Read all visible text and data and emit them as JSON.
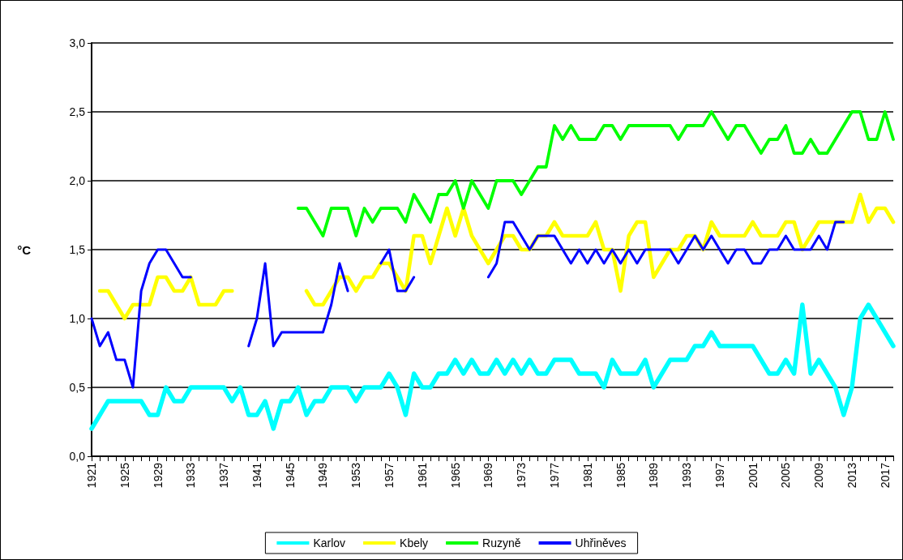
{
  "chart_data": {
    "type": "line",
    "ylabel": "°C",
    "x": [
      1921,
      1922,
      1923,
      1924,
      1925,
      1926,
      1927,
      1928,
      1929,
      1930,
      1931,
      1932,
      1933,
      1934,
      1935,
      1936,
      1937,
      1938,
      1939,
      1940,
      1941,
      1942,
      1943,
      1944,
      1945,
      1946,
      1947,
      1948,
      1949,
      1950,
      1951,
      1952,
      1953,
      1954,
      1955,
      1956,
      1957,
      1958,
      1959,
      1960,
      1961,
      1962,
      1963,
      1964,
      1965,
      1966,
      1967,
      1968,
      1969,
      1970,
      1971,
      1972,
      1973,
      1974,
      1975,
      1976,
      1977,
      1978,
      1979,
      1980,
      1981,
      1982,
      1983,
      1984,
      1985,
      1986,
      1987,
      1988,
      1989,
      1990,
      1991,
      1992,
      1993,
      1994,
      1995,
      1996,
      1997,
      1998,
      1999,
      2000,
      2001,
      2002,
      2003,
      2004,
      2005,
      2006,
      2007,
      2008,
      2009,
      2010,
      2011,
      2012,
      2013,
      2014,
      2015,
      2016,
      2017,
      2018
    ],
    "xlim": [
      1921,
      2018
    ],
    "xticks": [
      1921,
      1925,
      1929,
      1933,
      1937,
      1941,
      1945,
      1949,
      1953,
      1957,
      1961,
      1965,
      1969,
      1973,
      1977,
      1981,
      1985,
      1989,
      1993,
      1997,
      2001,
      2005,
      2009,
      2013,
      2017
    ],
    "ylim": [
      0,
      3
    ],
    "yticks": [
      {
        "value": 0,
        "label": "0,0"
      },
      {
        "value": 0.5,
        "label": "0,5"
      },
      {
        "value": 1,
        "label": "1,0"
      },
      {
        "value": 1.5,
        "label": "1,5"
      },
      {
        "value": 2,
        "label": "2,0"
      },
      {
        "value": 2.5,
        "label": "2,5"
      },
      {
        "value": 3,
        "label": "3,0"
      }
    ],
    "grid": "y",
    "legend": "bottom",
    "marker": "none",
    "line_style": "solid",
    "series": [
      {
        "name": "Karlov",
        "color": "#00ffff",
        "values": [
          0.2,
          0.3,
          0.4,
          0.4,
          0.4,
          0.4,
          0.4,
          0.3,
          0.3,
          0.5,
          0.4,
          0.4,
          0.5,
          0.5,
          0.5,
          0.5,
          0.5,
          0.4,
          0.5,
          0.3,
          0.3,
          0.4,
          0.2,
          0.4,
          0.4,
          0.5,
          0.3,
          0.4,
          0.4,
          0.5,
          0.5,
          0.5,
          0.4,
          0.5,
          0.5,
          0.5,
          0.6,
          0.5,
          0.3,
          0.6,
          0.5,
          0.5,
          0.6,
          0.6,
          0.7,
          0.6,
          0.7,
          0.6,
          0.6,
          0.7,
          0.6,
          0.7,
          0.6,
          0.7,
          0.6,
          0.6,
          0.7,
          0.7,
          0.7,
          0.6,
          0.6,
          0.6,
          0.5,
          0.7,
          0.6,
          0.6,
          0.6,
          0.7,
          0.5,
          0.6,
          0.7,
          0.7,
          0.7,
          0.8,
          0.8,
          0.9,
          0.8,
          0.8,
          0.8,
          0.8,
          0.8,
          0.7,
          0.6,
          0.6,
          0.7,
          0.6,
          1.1,
          0.6,
          0.7,
          0.6,
          0.5,
          0.3,
          0.5,
          1.0,
          1.1,
          1.0,
          0.9,
          0.8
        ]
      },
      {
        "name": "Kbely",
        "color": "#ffff00",
        "values": [
          null,
          1.2,
          1.2,
          1.1,
          1.0,
          1.1,
          1.1,
          1.1,
          1.3,
          1.3,
          1.2,
          1.2,
          1.3,
          1.1,
          1.1,
          1.1,
          1.2,
          1.2,
          null,
          null,
          null,
          null,
          null,
          null,
          null,
          null,
          1.2,
          1.1,
          1.1,
          1.2,
          1.3,
          1.3,
          1.2,
          1.3,
          1.3,
          1.4,
          1.4,
          1.3,
          1.2,
          1.6,
          1.6,
          1.4,
          1.6,
          1.8,
          1.6,
          1.8,
          1.6,
          1.5,
          1.4,
          1.5,
          1.6,
          1.6,
          1.5,
          1.5,
          1.6,
          1.6,
          1.7,
          1.6,
          1.6,
          1.6,
          1.6,
          1.7,
          1.5,
          1.5,
          1.2,
          1.6,
          1.7,
          1.7,
          1.3,
          1.4,
          1.5,
          1.5,
          1.6,
          1.6,
          1.5,
          1.7,
          1.6,
          1.6,
          1.6,
          1.6,
          1.7,
          1.6,
          1.6,
          1.6,
          1.7,
          1.7,
          1.5,
          1.6,
          1.7,
          1.7,
          1.7,
          1.7,
          1.7,
          1.9,
          1.7,
          1.8,
          1.8,
          1.7
        ]
      },
      {
        "name": "Ruzyně",
        "color": "#00ff00",
        "values": [
          null,
          null,
          null,
          null,
          null,
          null,
          null,
          null,
          null,
          null,
          null,
          null,
          null,
          null,
          null,
          null,
          null,
          null,
          null,
          null,
          null,
          null,
          null,
          null,
          null,
          1.8,
          1.8,
          1.7,
          1.6,
          1.8,
          1.8,
          1.8,
          1.6,
          1.8,
          1.7,
          1.8,
          1.8,
          1.8,
          1.7,
          1.9,
          1.8,
          1.7,
          1.9,
          1.9,
          2.0,
          1.8,
          2.0,
          1.9,
          1.8,
          2.0,
          2.0,
          2.0,
          1.9,
          2.0,
          2.1,
          2.1,
          2.4,
          2.3,
          2.4,
          2.3,
          2.3,
          2.3,
          2.4,
          2.4,
          2.3,
          2.4,
          2.4,
          2.4,
          2.4,
          2.4,
          2.4,
          2.3,
          2.4,
          2.4,
          2.4,
          2.5,
          2.4,
          2.3,
          2.4,
          2.4,
          2.3,
          2.2,
          2.3,
          2.3,
          2.4,
          2.2,
          2.2,
          2.3,
          2.2,
          2.2,
          2.3,
          2.4,
          2.5,
          2.5,
          2.3,
          2.3,
          2.5,
          2.3
        ]
      },
      {
        "name": "Uhřiněves",
        "color": "#0000ff",
        "values": [
          1.0,
          0.8,
          0.9,
          0.7,
          0.7,
          0.5,
          1.2,
          1.4,
          1.5,
          1.5,
          1.4,
          1.3,
          1.3,
          null,
          null,
          null,
          null,
          null,
          null,
          0.8,
          1.0,
          1.4,
          0.8,
          0.9,
          0.9,
          0.9,
          0.9,
          0.9,
          0.9,
          1.1,
          1.4,
          1.2,
          null,
          null,
          null,
          1.4,
          1.5,
          1.2,
          1.2,
          1.3,
          null,
          null,
          null,
          null,
          null,
          null,
          null,
          null,
          1.3,
          1.4,
          1.7,
          1.7,
          1.6,
          1.5,
          1.6,
          1.6,
          1.6,
          1.5,
          1.4,
          1.5,
          1.4,
          1.5,
          1.4,
          1.5,
          1.4,
          1.5,
          1.4,
          1.5,
          1.5,
          1.5,
          1.5,
          1.4,
          1.5,
          1.6,
          1.5,
          1.6,
          1.5,
          1.4,
          1.5,
          1.5,
          1.4,
          1.4,
          1.5,
          1.5,
          1.6,
          1.5,
          1.5,
          1.5,
          1.6,
          1.5,
          1.7,
          1.7,
          null,
          null,
          null,
          null,
          null,
          null
        ]
      }
    ]
  }
}
